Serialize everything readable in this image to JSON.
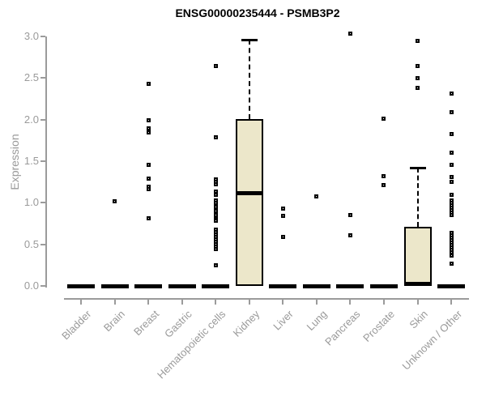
{
  "chart_data": {
    "type": "boxplot",
    "title": "ENSG00000235444 - PSMB3P2",
    "ylabel": "Expression",
    "xlabel": "",
    "ylim": [
      0.0,
      3.0
    ],
    "yticks": [
      "0.0",
      "0.5",
      "1.0",
      "1.5",
      "2.0",
      "2.5",
      "3.0"
    ],
    "ytick_values": [
      0.0,
      0.5,
      1.0,
      1.5,
      2.0,
      2.5,
      3.0
    ],
    "grid": false,
    "legend": "none",
    "categories": [
      "Bladder",
      "Brain",
      "Breast",
      "Gastric",
      "Hematopoietic cells",
      "Kidney",
      "Liver",
      "Lung",
      "Pancreas",
      "Prostate",
      "Skin",
      "Unknown / Other"
    ],
    "series": [
      {
        "name": "Bladder",
        "q1": 0,
        "median": 0,
        "q3": 0,
        "whisker_low": 0,
        "whisker_high": 0,
        "points": []
      },
      {
        "name": "Brain",
        "q1": 0,
        "median": 0,
        "q3": 0,
        "whisker_low": 0,
        "whisker_high": 0,
        "points": [
          1.02
        ]
      },
      {
        "name": "Breast",
        "q1": 0,
        "median": 0,
        "q3": 0,
        "whisker_low": 0,
        "whisker_high": 0,
        "points": [
          2.43,
          1.99,
          1.89,
          1.85,
          1.46,
          1.29,
          1.19,
          1.16,
          0.81
        ]
      },
      {
        "name": "Gastric",
        "q1": 0,
        "median": 0,
        "q3": 0,
        "whisker_low": 0,
        "whisker_high": 0,
        "points": []
      },
      {
        "name": "Hematopoietic cells",
        "q1": 0,
        "median": 0,
        "q3": 0,
        "whisker_low": 0,
        "whisker_high": 0,
        "points": [
          2.64,
          1.79,
          1.28,
          1.25,
          1.22,
          1.13,
          1.1,
          1.03,
          1.0,
          0.97,
          0.95,
          0.92,
          0.9,
          0.87,
          0.85,
          0.82,
          0.8,
          0.78,
          0.68,
          0.65,
          0.62,
          0.59,
          0.56,
          0.53,
          0.5,
          0.47,
          0.44,
          0.25
        ]
      },
      {
        "name": "Kidney",
        "q1": 0,
        "median": 1.12,
        "q3": 2.01,
        "whisker_low": 0,
        "whisker_high": 2.96,
        "points": []
      },
      {
        "name": "Liver",
        "q1": 0,
        "median": 0,
        "q3": 0,
        "whisker_low": 0,
        "whisker_high": 0,
        "points": [
          0.93,
          0.84,
          0.59
        ]
      },
      {
        "name": "Lung",
        "q1": 0,
        "median": 0,
        "q3": 0,
        "whisker_low": 0,
        "whisker_high": 0,
        "points": [
          1.08
        ]
      },
      {
        "name": "Pancreas",
        "q1": 0,
        "median": 0,
        "q3": 0,
        "whisker_low": 0,
        "whisker_high": 0,
        "points": [
          3.03,
          0.85,
          0.61
        ]
      },
      {
        "name": "Prostate",
        "q1": 0,
        "median": 0,
        "q3": 0,
        "whisker_low": 0,
        "whisker_high": 0,
        "points": [
          2.01,
          1.32,
          1.21
        ]
      },
      {
        "name": "Skin",
        "q1": 0,
        "median": 0.02,
        "q3": 0.71,
        "whisker_low": 0,
        "whisker_high": 1.42,
        "points": [
          2.95,
          2.64,
          2.5,
          2.38
        ]
      },
      {
        "name": "Unknown / Other",
        "q1": 0,
        "median": 0,
        "q3": 0,
        "whisker_low": 0,
        "whisker_high": 0,
        "points": [
          2.31,
          2.09,
          1.83,
          1.6,
          1.46,
          1.31,
          1.25,
          1.1,
          1.03,
          1.0,
          0.97,
          0.94,
          0.91,
          0.88,
          0.85,
          0.64,
          0.61,
          0.58,
          0.55,
          0.52,
          0.49,
          0.46,
          0.43,
          0.4,
          0.37,
          0.27
        ]
      }
    ],
    "colors": {
      "box_fill": "#ece7ca",
      "box_border": "#000000",
      "median": "#000000",
      "axis": "#9b9b9b",
      "tick_text": "#9a9a9a",
      "title_text": "#000000",
      "point": "#000000"
    }
  }
}
